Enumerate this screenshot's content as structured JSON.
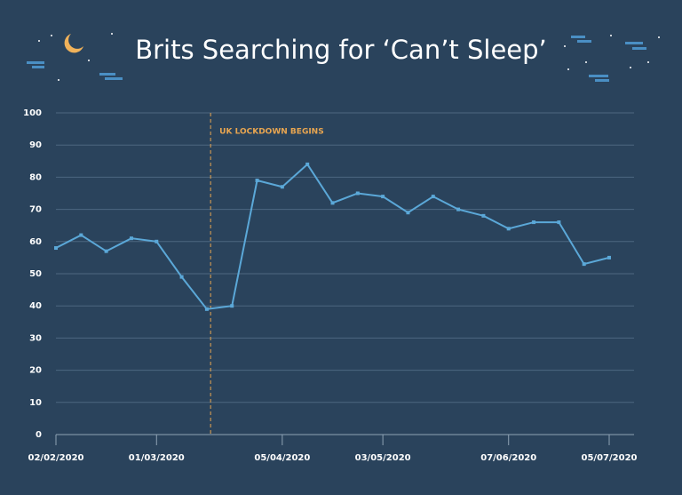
{
  "chart_data": {
    "type": "line",
    "title": "Brits Searching for ‘Can’t Sleep’",
    "x": [
      "02/02/2020",
      null,
      null,
      null,
      "01/03/2020",
      null,
      null,
      null,
      null,
      "05/04/2020",
      null,
      null,
      null,
      "03/05/2020",
      null,
      null,
      null,
      null,
      "07/06/2020",
      null,
      null,
      null,
      "05/07/2020"
    ],
    "series": [
      {
        "color": "#5ba8d8",
        "values": [
          58,
          62,
          57,
          61,
          60,
          49,
          39,
          40,
          79,
          77,
          84,
          72,
          75,
          74,
          69,
          74,
          70,
          68,
          64,
          66,
          66,
          53,
          55
        ]
      }
    ],
    "ylim": [
      0,
      100
    ],
    "yticks": [
      0,
      10,
      20,
      30,
      40,
      50,
      60,
      70,
      80,
      90,
      100
    ],
    "grid": true,
    "annotation": {
      "text": "UK LOCKDOWN BEGINS",
      "x": 6.15,
      "color": "#e8a550"
    }
  }
}
